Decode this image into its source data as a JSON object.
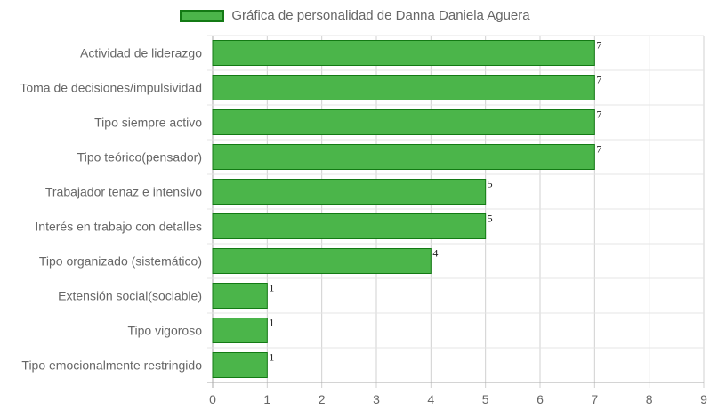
{
  "chart_data": {
    "type": "bar",
    "orientation": "horizontal",
    "legend_position": "top-center",
    "grid": true,
    "xlim": [
      0,
      9
    ],
    "x_ticks": [
      0,
      1,
      2,
      3,
      4,
      5,
      6,
      7,
      8,
      9
    ],
    "categories": [
      "Actividad de liderazgo",
      "Toma de decisiones/impulsividad",
      "Tipo siempre activo",
      "Tipo teórico(pensador)",
      "Trabajador tenaz e intensivo",
      "Interés en trabajo con detalles",
      "Tipo organizado (sistemático)",
      "Extensión social(sociable)",
      "Tipo vigoroso",
      "Tipo emocionalmente restringido"
    ],
    "series": [
      {
        "name": "Gráfica de personalidad de Danna Daniela Aguera",
        "color": "#4bb54a",
        "border_color": "#137a14",
        "values": [
          7,
          7,
          7,
          7,
          5,
          5,
          4,
          1,
          1,
          1
        ]
      }
    ]
  }
}
